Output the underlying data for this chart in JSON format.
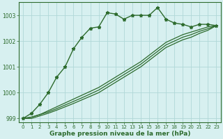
{
  "xlabel": "Graphe pression niveau de la mer (hPa)",
  "bg_color": "#d7f0f0",
  "grid_color": "#b0d8d8",
  "line_color": "#2d6b2d",
  "x_values": [
    0,
    1,
    2,
    3,
    4,
    5,
    6,
    7,
    8,
    9,
    10,
    11,
    12,
    13,
    14,
    15,
    16,
    17,
    18,
    19,
    20,
    21,
    22,
    23
  ],
  "series1": [
    999.0,
    999.2,
    999.55,
    1000.0,
    1000.6,
    1001.0,
    1001.7,
    1002.15,
    1002.5,
    1002.55,
    1003.1,
    1003.05,
    1002.85,
    1003.0,
    1003.0,
    1003.0,
    1003.3,
    1002.85,
    1002.7,
    1002.65,
    1002.55,
    1002.65,
    1002.65,
    1002.6
  ],
  "series2": [
    999.0,
    999.05,
    999.15,
    999.3,
    999.45,
    999.6,
    999.75,
    999.9,
    1000.05,
    1000.2,
    1000.4,
    1000.6,
    1000.8,
    1001.0,
    1001.2,
    1001.45,
    1001.7,
    1001.95,
    1002.1,
    1002.25,
    1002.35,
    1002.45,
    1002.55,
    1002.6
  ],
  "series3": [
    999.0,
    999.05,
    999.15,
    999.25,
    999.38,
    999.52,
    999.66,
    999.8,
    999.95,
    1000.1,
    1000.3,
    1000.5,
    1000.7,
    1000.9,
    1001.1,
    1001.35,
    1001.6,
    1001.85,
    1002.0,
    1002.15,
    1002.25,
    1002.38,
    1002.48,
    1002.6
  ],
  "series4": [
    999.0,
    999.0,
    999.1,
    999.2,
    999.32,
    999.45,
    999.58,
    999.72,
    999.86,
    1000.0,
    1000.2,
    1000.4,
    1000.6,
    1000.8,
    1001.0,
    1001.25,
    1001.5,
    1001.75,
    1001.9,
    1002.05,
    1002.15,
    1002.3,
    1002.42,
    1002.6
  ],
  "ylim": [
    998.85,
    1003.5
  ],
  "yticks": [
    999,
    1000,
    1001,
    1002,
    1003
  ],
  "xticks": [
    0,
    1,
    2,
    3,
    4,
    5,
    6,
    7,
    8,
    9,
    10,
    11,
    12,
    13,
    14,
    15,
    16,
    17,
    18,
    19,
    20,
    21,
    22,
    23
  ]
}
